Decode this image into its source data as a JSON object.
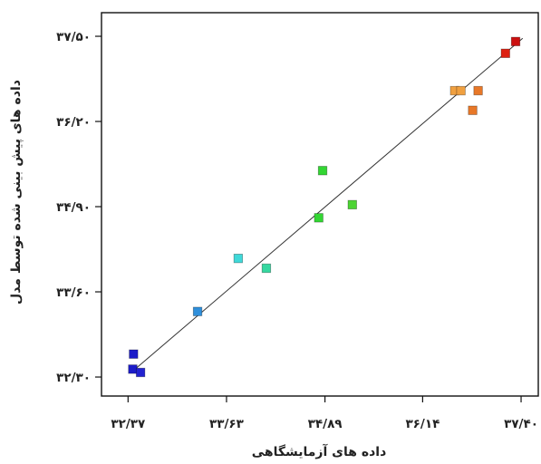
{
  "chart_data": {
    "type": "scatter",
    "title": "",
    "xlabel": "داده های آزمایشگاهی",
    "ylabel": "داده های پیش بینی شده توسط مدل",
    "xlim": [
      32.03,
      37.62
    ],
    "ylim": [
      32.01,
      37.86
    ],
    "grid": false,
    "legend": "none",
    "x_ticks": [
      {
        "value": 32.37,
        "label": "۳۲/۳۷"
      },
      {
        "value": 33.63,
        "label": "۳۳/۶۳"
      },
      {
        "value": 34.89,
        "label": "۳۴/۸۹"
      },
      {
        "value": 36.14,
        "label": "۳۶/۱۴"
      },
      {
        "value": 37.4,
        "label": "۳۷/۴۰"
      }
    ],
    "y_ticks": [
      {
        "value": 32.3,
        "label": "۳۲/۳۰"
      },
      {
        "value": 33.6,
        "label": "۳۳/۶۰"
      },
      {
        "value": 34.9,
        "label": "۳۴/۹۰"
      },
      {
        "value": 36.2,
        "label": "۳۶/۲۰"
      },
      {
        "value": 37.5,
        "label": "۳۷/۵۰"
      }
    ],
    "points": [
      {
        "x": 32.44,
        "y": 32.65,
        "color": "#1c1cc8"
      },
      {
        "x": 32.43,
        "y": 32.42,
        "color": "#1c1cc8"
      },
      {
        "x": 32.53,
        "y": 32.37,
        "color": "#2222d0"
      },
      {
        "x": 33.26,
        "y": 33.3,
        "color": "#2f8fdb"
      },
      {
        "x": 33.78,
        "y": 34.11,
        "color": "#3fd9d9"
      },
      {
        "x": 34.14,
        "y": 33.96,
        "color": "#35d8a0"
      },
      {
        "x": 34.86,
        "y": 35.45,
        "color": "#33d633"
      },
      {
        "x": 34.81,
        "y": 34.73,
        "color": "#33d633"
      },
      {
        "x": 35.24,
        "y": 34.93,
        "color": "#4cd433"
      },
      {
        "x": 36.55,
        "y": 36.67,
        "color": "#f0a040"
      },
      {
        "x": 36.63,
        "y": 36.67,
        "color": "#f0a040"
      },
      {
        "x": 36.85,
        "y": 36.67,
        "color": "#e87828"
      },
      {
        "x": 36.78,
        "y": 36.37,
        "color": "#e87828"
      },
      {
        "x": 37.2,
        "y": 37.24,
        "color": "#dd2010"
      },
      {
        "x": 37.33,
        "y": 37.42,
        "color": "#cc1010"
      }
    ],
    "fit_line": {
      "x": [
        32.42,
        37.42
      ],
      "y": [
        32.38,
        37.47
      ],
      "color": "#333333"
    },
    "frame_color": "#111111"
  }
}
